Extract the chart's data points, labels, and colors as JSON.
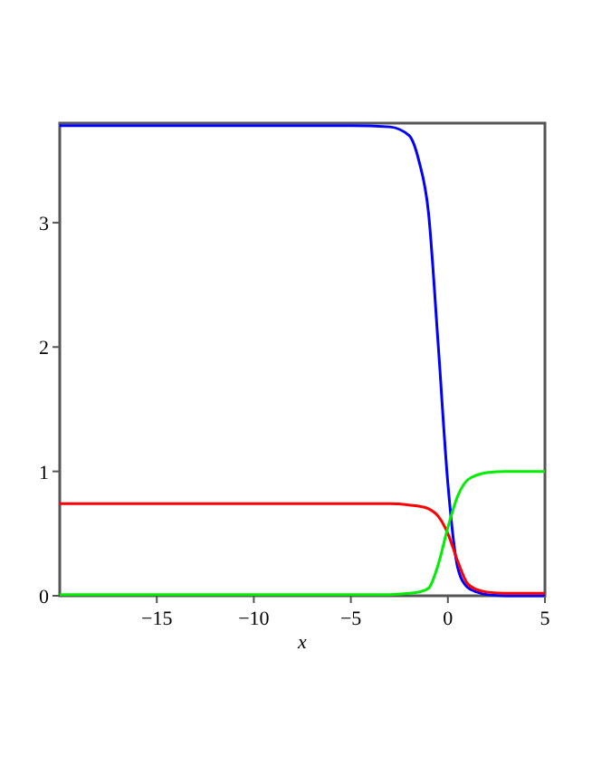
{
  "chart_data": {
    "type": "line",
    "xlabel": "x",
    "xlim": [
      -20,
      5
    ],
    "ylim": [
      0,
      3.8
    ],
    "xticks": [
      -15,
      -10,
      -5,
      0,
      5
    ],
    "yticks": [
      0,
      1,
      2,
      3
    ],
    "grid": false,
    "marker": "none",
    "line_style": "solid",
    "x": [
      -20,
      -5,
      -3,
      -2,
      -1.5,
      -1,
      -0.5,
      0,
      0.5,
      1,
      1.5,
      2,
      3,
      5
    ],
    "series": [
      {
        "color": "#0000ff",
        "values": [
          3.78,
          3.78,
          3.77,
          3.7,
          3.5,
          3.08,
          2.02,
          0.9,
          0.23,
          0.07,
          0.03,
          0.01,
          0.0,
          0.0
        ]
      },
      {
        "color": "#ff0000",
        "values": [
          0.74,
          0.74,
          0.74,
          0.73,
          0.72,
          0.7,
          0.64,
          0.5,
          0.28,
          0.1,
          0.05,
          0.03,
          0.02,
          0.02
        ]
      },
      {
        "color": "#00ee00",
        "values": [
          0.01,
          0.01,
          0.01,
          0.02,
          0.03,
          0.06,
          0.25,
          0.55,
          0.8,
          0.93,
          0.97,
          0.99,
          1.0,
          1.0
        ]
      }
    ]
  }
}
